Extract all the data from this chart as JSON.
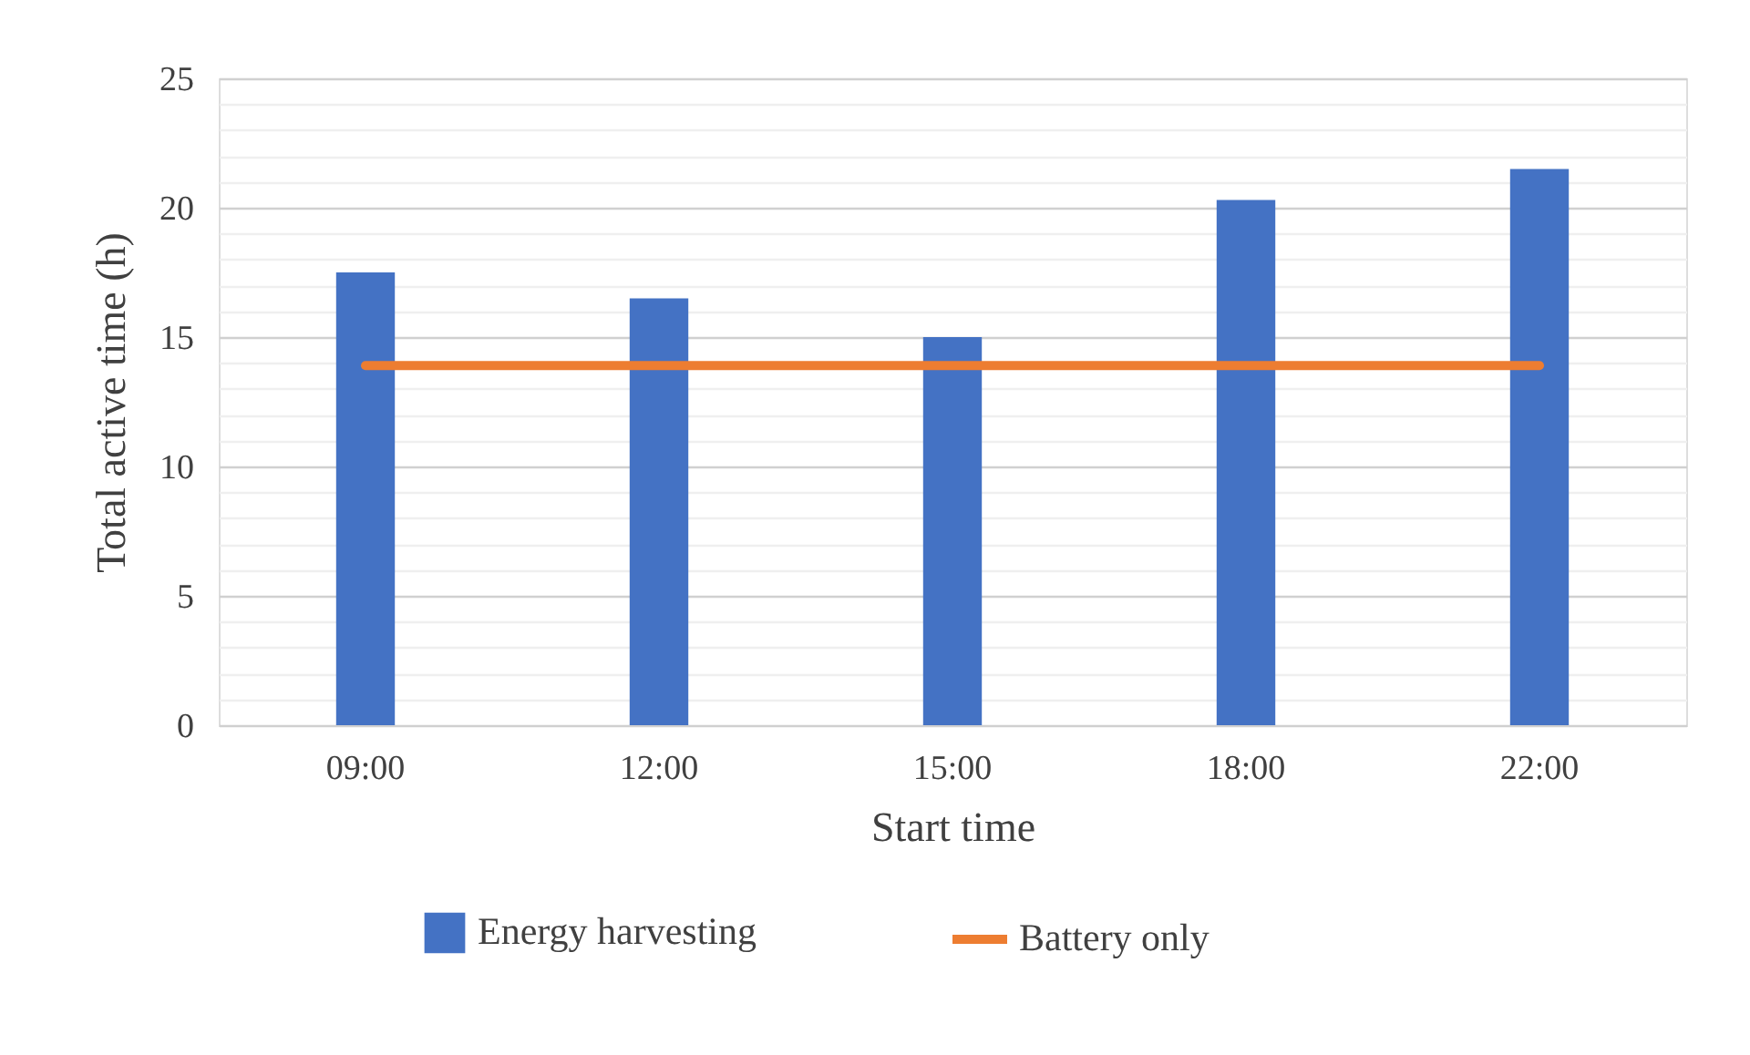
{
  "chart_data": {
    "type": "bar",
    "xlabel": "Start time",
    "ylabel": "Total active time (h)",
    "categories": [
      "09:00",
      "12:00",
      "15:00",
      "18:00",
      "22:00"
    ],
    "series": [
      {
        "name": "Energy harvesting",
        "color": "#4472c4",
        "values": [
          17.5,
          16.5,
          15,
          20.3,
          21.5
        ]
      },
      {
        "name": "Battery only",
        "type": "line",
        "color": "#ed7d31",
        "values": [
          13.9,
          13.9,
          13.9,
          13.9,
          13.9
        ]
      }
    ],
    "ylim": [
      0,
      25
    ],
    "yticks": [
      0,
      {
        "value": 1,
        "label": null
      },
      {
        "value": 2,
        "label": null
      },
      {
        "value": 3,
        "label": null
      },
      {
        "value": 4,
        "label": null
      },
      5,
      {
        "value": 6,
        "label": null
      },
      {
        "value": 7,
        "label": null
      },
      {
        "value": 8,
        "label": null
      },
      {
        "value": 9,
        "label": null
      },
      10,
      {
        "value": 11,
        "label": null
      },
      {
        "value": 12,
        "label": null
      },
      {
        "value": 13,
        "label": null
      },
      {
        "value": 14,
        "label": null
      },
      15,
      {
        "value": 16,
        "label": null
      },
      {
        "value": 17,
        "label": null
      },
      {
        "value": 18,
        "label": null
      },
      {
        "value": 19,
        "label": null
      },
      20,
      {
        "value": 21,
        "label": null
      },
      {
        "value": 22,
        "label": null
      },
      {
        "value": 23,
        "label": null
      },
      {
        "value": 24,
        "label": null
      },
      25
    ],
    "grid": "y",
    "legend": "bottom",
    "marker": "none"
  }
}
